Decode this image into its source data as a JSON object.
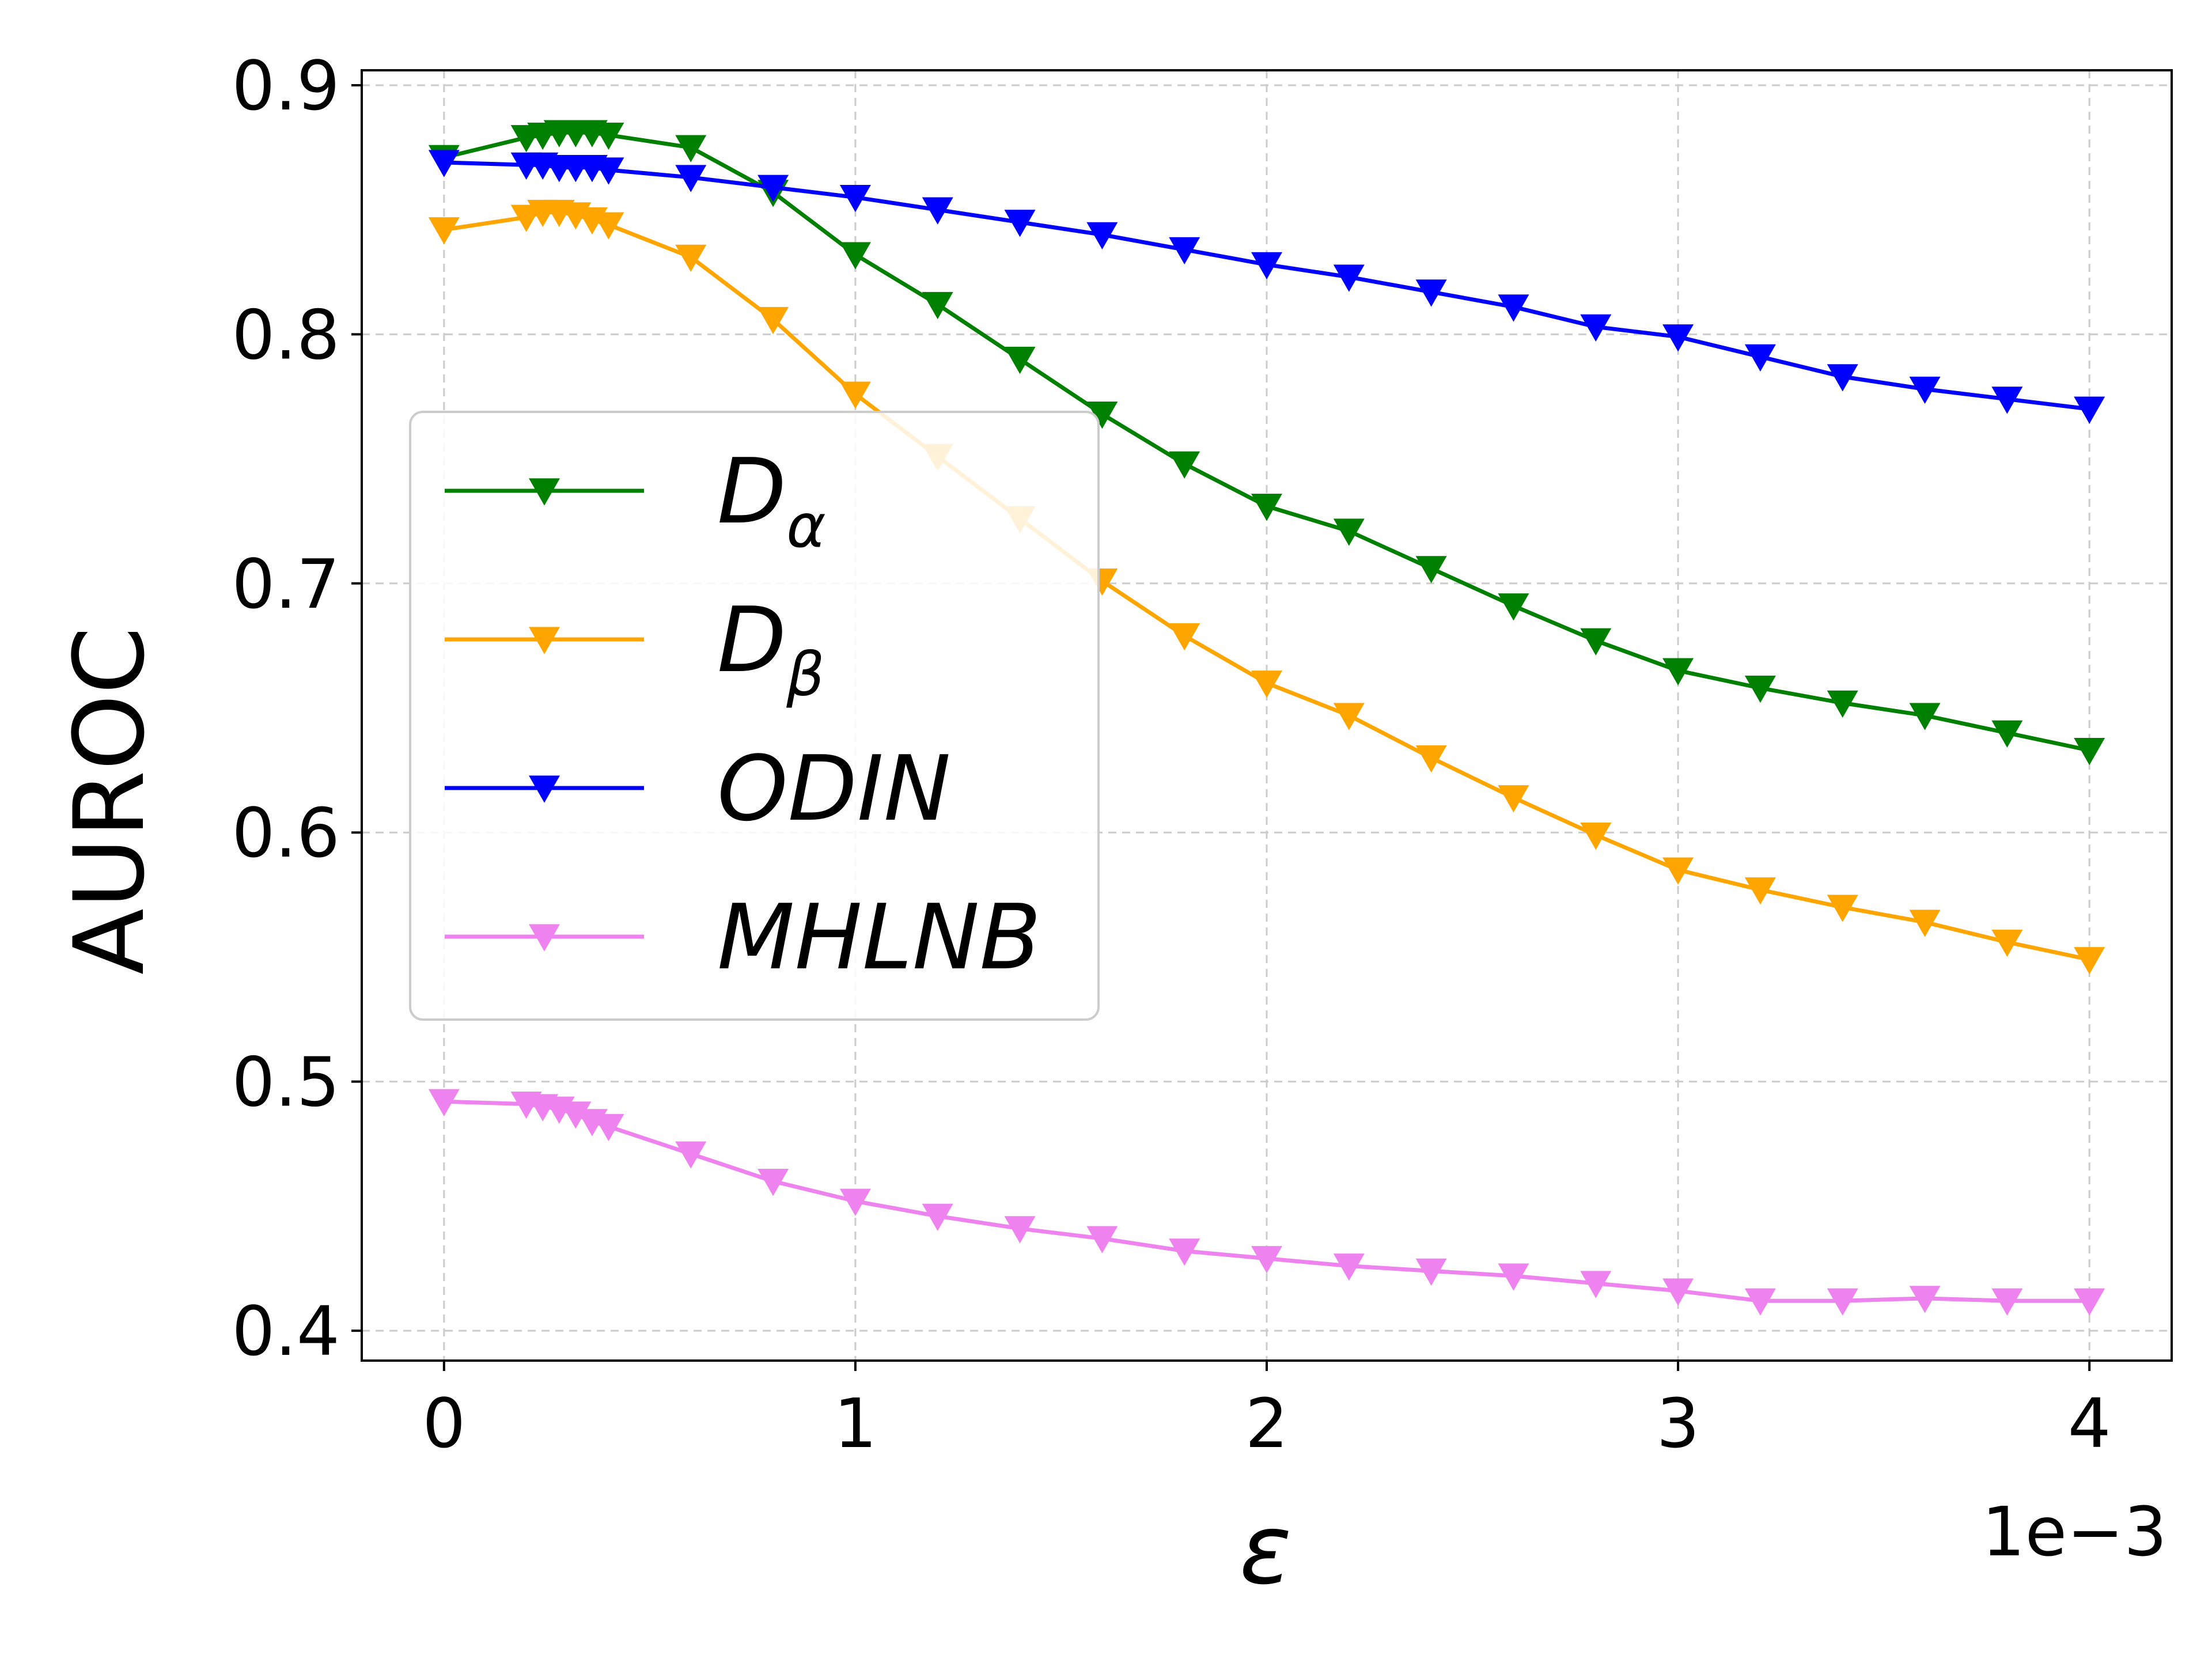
{
  "chart_data": {
    "type": "line",
    "title": "",
    "xlabel": "ε",
    "ylabel": "AUROC",
    "x_offset_text": "1e−3",
    "xlim": [
      -0.2,
      4.2
    ],
    "ylim": [
      0.388,
      0.906
    ],
    "xticks": [
      0,
      1,
      2,
      3,
      4
    ],
    "xtick_labels": [
      "0",
      "1",
      "2",
      "3",
      "4"
    ],
    "yticks": [
      0.4,
      0.5,
      0.6,
      0.7,
      0.8,
      0.9
    ],
    "ytick_labels": [
      "0.4",
      "0.5",
      "0.6",
      "0.7",
      "0.8",
      "0.9"
    ],
    "grid": true,
    "legend_position": "center-left",
    "marker": "triangle-down",
    "series": [
      {
        "name": "D_α",
        "label_main": "D",
        "label_sub": "α",
        "color": "#008000",
        "x": [
          0,
          0.2,
          0.24,
          0.28,
          0.32,
          0.36,
          0.4,
          0.6,
          0.8,
          1.0,
          1.2,
          1.4,
          1.6,
          1.8,
          2.0,
          2.2,
          2.4,
          2.6,
          2.8,
          3.0,
          3.2,
          3.4,
          3.6,
          3.8,
          4.0
        ],
        "values": [
          0.871,
          0.879,
          0.88,
          0.881,
          0.881,
          0.881,
          0.88,
          0.875,
          0.857,
          0.832,
          0.812,
          0.79,
          0.768,
          0.748,
          0.731,
          0.721,
          0.706,
          0.691,
          0.677,
          0.665,
          0.658,
          0.652,
          0.647,
          0.64,
          0.633
        ]
      },
      {
        "name": "D_β",
        "label_main": "D",
        "label_sub": "β",
        "color": "#ffa500",
        "x": [
          0,
          0.2,
          0.24,
          0.28,
          0.32,
          0.36,
          0.4,
          0.6,
          0.8,
          1.0,
          1.2,
          1.4,
          1.6,
          1.8,
          2.0,
          2.2,
          2.4,
          2.6,
          2.8,
          3.0,
          3.2,
          3.4,
          3.6,
          3.8,
          4.0
        ],
        "values": [
          0.842,
          0.847,
          0.849,
          0.849,
          0.848,
          0.846,
          0.844,
          0.831,
          0.806,
          0.776,
          0.751,
          0.726,
          0.701,
          0.679,
          0.66,
          0.647,
          0.63,
          0.614,
          0.599,
          0.585,
          0.577,
          0.57,
          0.564,
          0.556,
          0.549
        ]
      },
      {
        "name": "ODIN",
        "label_main": "ODIN",
        "label_sub": "",
        "color": "#0000ff",
        "x": [
          0,
          0.2,
          0.24,
          0.28,
          0.32,
          0.36,
          0.4,
          0.6,
          0.8,
          1.0,
          1.2,
          1.4,
          1.6,
          1.8,
          2.0,
          2.2,
          2.4,
          2.6,
          2.8,
          3.0,
          3.2,
          3.4,
          3.6,
          3.8,
          4.0
        ],
        "values": [
          0.869,
          0.868,
          0.868,
          0.867,
          0.867,
          0.867,
          0.866,
          0.863,
          0.859,
          0.855,
          0.85,
          0.845,
          0.84,
          0.834,
          0.828,
          0.823,
          0.817,
          0.811,
          0.803,
          0.799,
          0.791,
          0.783,
          0.778,
          0.774,
          0.77
        ]
      },
      {
        "name": "MHLNB",
        "label_main": "MHLNB",
        "label_sub": "",
        "color": "#ee82ee",
        "x": [
          0,
          0.2,
          0.24,
          0.28,
          0.32,
          0.36,
          0.4,
          0.6,
          0.8,
          1.0,
          1.2,
          1.4,
          1.6,
          1.8,
          2.0,
          2.2,
          2.4,
          2.6,
          2.8,
          3.0,
          3.2,
          3.4,
          3.6,
          3.8,
          4.0
        ],
        "values": [
          0.492,
          0.491,
          0.49,
          0.489,
          0.487,
          0.484,
          0.482,
          0.471,
          0.46,
          0.452,
          0.446,
          0.441,
          0.437,
          0.432,
          0.429,
          0.426,
          0.424,
          0.422,
          0.419,
          0.416,
          0.412,
          0.412,
          0.413,
          0.412,
          0.412
        ]
      }
    ]
  }
}
